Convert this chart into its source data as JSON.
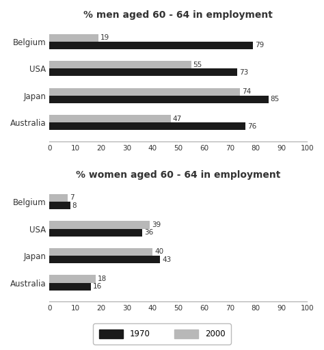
{
  "men_title": "% men aged 60 - 64 in employment",
  "women_title": "% women aged 60 - 64 in employment",
  "countries": [
    "Belgium",
    "USA",
    "Japan",
    "Australia"
  ],
  "men_1970": [
    79,
    73,
    85,
    76
  ],
  "men_2000": [
    19,
    55,
    74,
    47
  ],
  "women_1970": [
    8,
    36,
    43,
    16
  ],
  "women_2000": [
    7,
    39,
    40,
    18
  ],
  "color_1970": "#1a1a1a",
  "color_2000": "#b8b8b8",
  "bar_height": 0.28,
  "xlim": [
    0,
    100
  ],
  "xticks": [
    0,
    10,
    20,
    30,
    40,
    50,
    60,
    70,
    80,
    90,
    100
  ],
  "bg_color": "#ffffff",
  "title_fontsize": 10,
  "label_fontsize": 8.5,
  "tick_fontsize": 7.5,
  "value_fontsize": 7.5,
  "legend_labels": [
    "1970",
    "2000"
  ]
}
